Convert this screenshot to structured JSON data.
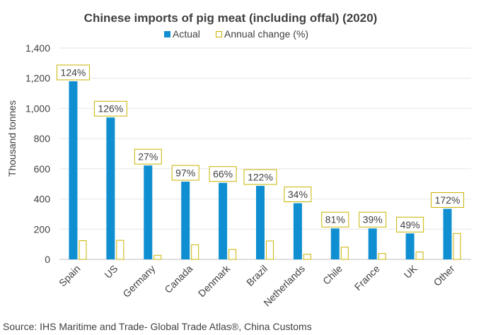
{
  "chart_data": {
    "type": "bar",
    "title": "Chinese imports of pig meat (including offal) (2020)",
    "ylabel": "Thousand tonnes",
    "xlabel": "",
    "ylim": [
      0,
      1400
    ],
    "yticks": [
      "0",
      "200",
      "400",
      "600",
      "800",
      "1,000",
      "1,200",
      "1,400"
    ],
    "grid": true,
    "legend_position": "top",
    "categories": [
      "Spain",
      "US",
      "Germany",
      "Canada",
      "Denmark",
      "Brazil",
      "Netherlands",
      "Chile",
      "France",
      "UK",
      "Other"
    ],
    "series": [
      {
        "name": "Actual",
        "color": "#0f8fd1",
        "values": [
          1180,
          940,
          622,
          515,
          507,
          487,
          372,
          205,
          205,
          172,
          335
        ]
      },
      {
        "name": "Annual change (%)",
        "color": "#ffffff",
        "border_color": "#c9b400",
        "values": [
          124,
          126,
          27,
          97,
          66,
          122,
          34,
          81,
          39,
          49,
          172
        ],
        "labels": [
          "124%",
          "126%",
          "27%",
          "97%",
          "66%",
          "122%",
          "34%",
          "81%",
          "39%",
          "49%",
          "172%"
        ]
      }
    ],
    "source": "Source: IHS Maritime and Trade- Global Trade Atlas®, China Customs"
  }
}
